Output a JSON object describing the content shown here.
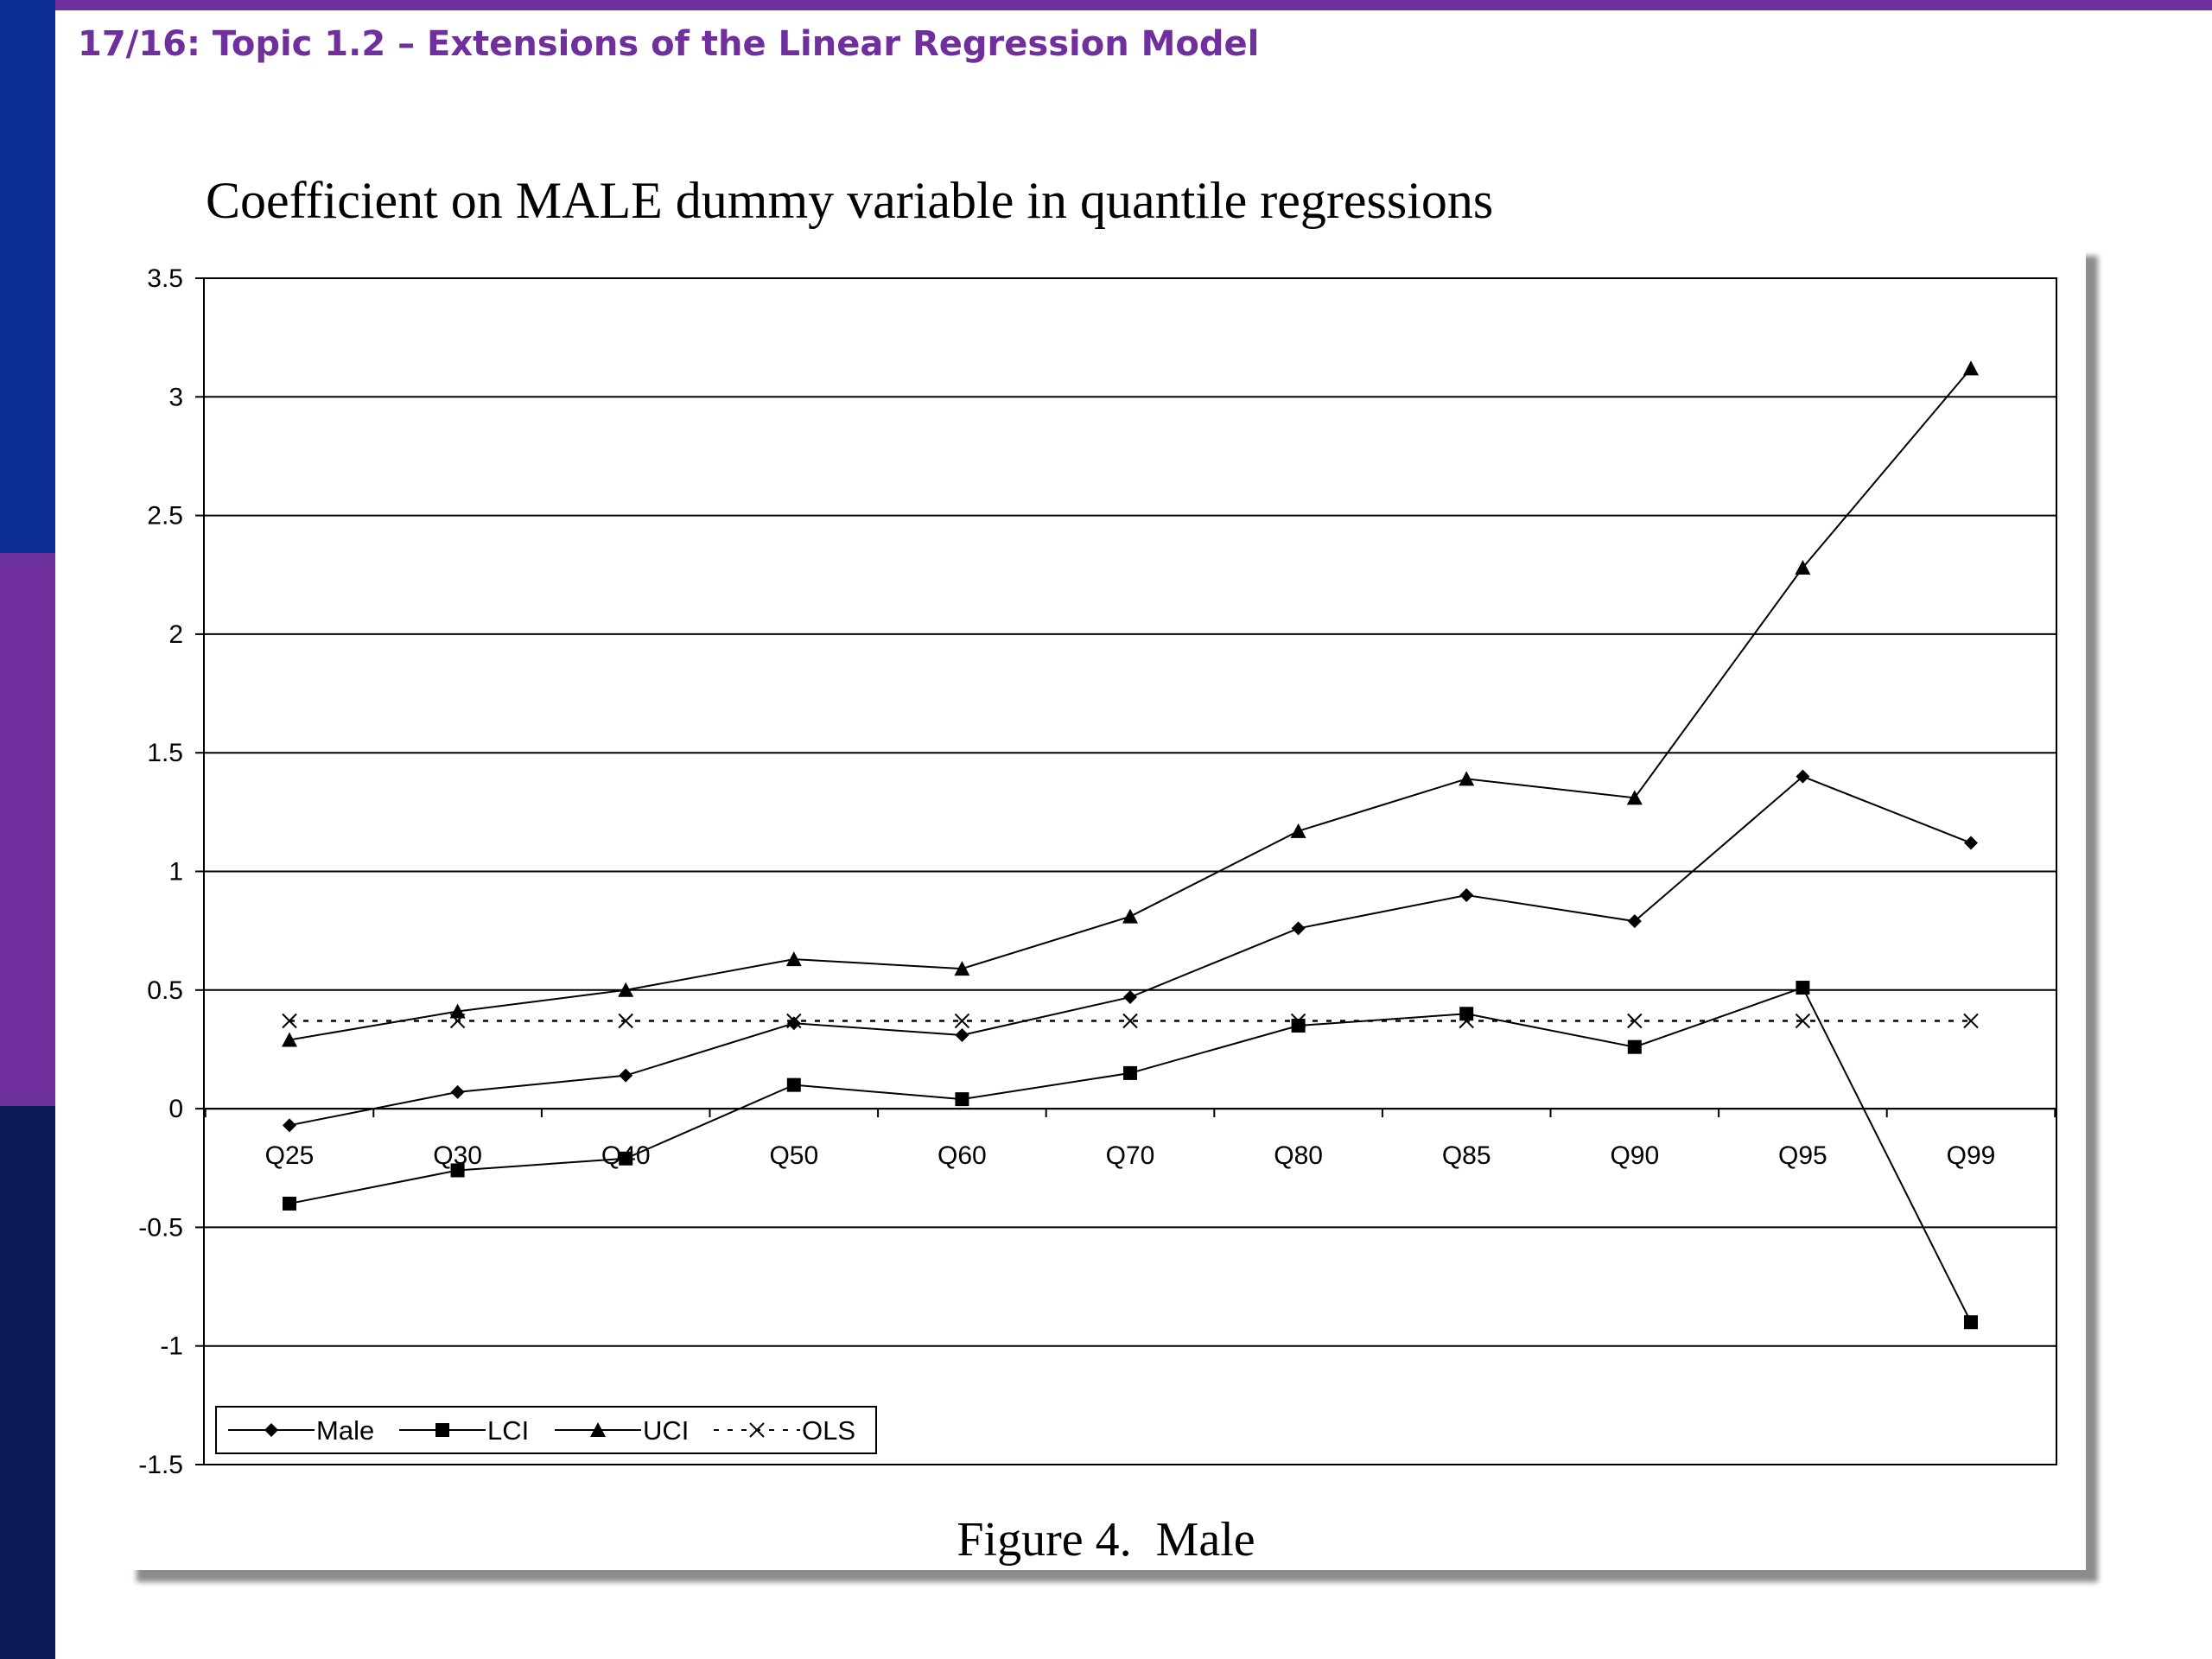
{
  "slide": {
    "title": "17/16: Topic 1.2 – Extensions of the Linear Regression Model",
    "colors": {
      "accent_purple": "#6f2f9d",
      "band_blue": "#0c2d96",
      "band_navy": "#0b1b57"
    }
  },
  "figure": {
    "caption": "Figure 4.  Male"
  },
  "chart_data": {
    "type": "line",
    "title": "Coefficient on MALE dummy variable in quantile regressions",
    "xlabel": "",
    "ylabel": "",
    "categories": [
      "Q25",
      "Q30",
      "Q40",
      "Q50",
      "Q60",
      "Q70",
      "Q80",
      "Q85",
      "Q90",
      "Q95",
      "Q99"
    ],
    "ylim": [
      -1.5,
      3.5
    ],
    "yticks": [
      "3.5",
      "3",
      "2.5",
      "2",
      "1.5",
      "1",
      "0.5",
      "0",
      "-0.5",
      "-1",
      "-1.5"
    ],
    "grid": "horizontal",
    "legend_position": "bottom-left",
    "series": [
      {
        "name": "Male",
        "marker": "diamond",
        "dash": "solid",
        "values": [
          -0.07,
          0.07,
          0.14,
          0.36,
          0.31,
          0.47,
          0.76,
          0.9,
          0.79,
          1.4,
          1.12
        ]
      },
      {
        "name": "LCI",
        "marker": "square",
        "dash": "solid",
        "values": [
          -0.4,
          -0.26,
          -0.21,
          0.1,
          0.04,
          0.15,
          0.35,
          0.4,
          0.26,
          0.51,
          -0.9
        ]
      },
      {
        "name": "UCI",
        "marker": "triangle",
        "dash": "solid",
        "values": [
          0.29,
          0.41,
          0.5,
          0.63,
          0.59,
          0.81,
          1.17,
          1.39,
          1.31,
          2.28,
          3.12
        ]
      },
      {
        "name": "OLS",
        "marker": "x",
        "dash": "dotted",
        "values": [
          0.37,
          0.37,
          0.37,
          0.37,
          0.37,
          0.37,
          0.37,
          0.37,
          0.37,
          0.37,
          0.37
        ]
      }
    ]
  }
}
